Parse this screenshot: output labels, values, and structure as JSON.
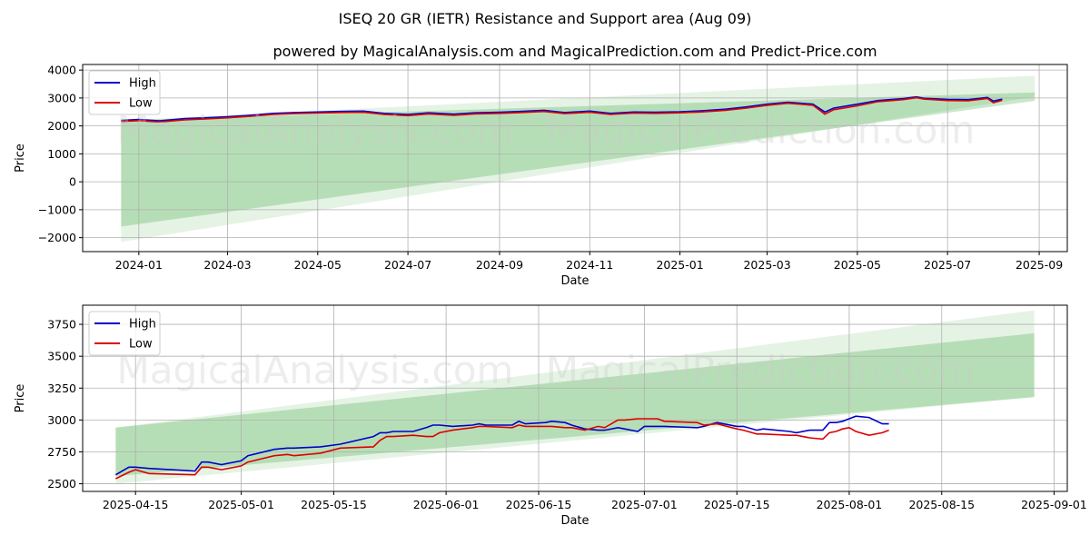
{
  "title": "ISEQ 20 GR (IETR) Resistance and Support area (Aug 09)",
  "subtitle": "powered by MagicalAnalysis.com and MagicalPrediction.com and Predict-Price.com",
  "watermarks": [
    "MagicalAnalysis.com",
    "MagicalPrediction.com"
  ],
  "colors": {
    "high": "#0000cc",
    "low": "#dd0000",
    "band": "#2ca02c",
    "grid": "#b0b0b0"
  },
  "chart_data": [
    {
      "type": "line",
      "xlabel": "Date",
      "ylabel": "Price",
      "grid": true,
      "legend_position": "top-left",
      "xlim": [
        "2023-11-24",
        "2025-09-20"
      ],
      "ylim": [
        -2500,
        4200
      ],
      "x_ticks": [
        "2024-01",
        "2024-03",
        "2024-05",
        "2024-07",
        "2024-09",
        "2024-11",
        "2025-01",
        "2025-03",
        "2025-05",
        "2025-07",
        "2025-09"
      ],
      "x_tick_dates": [
        "2024-01-01",
        "2024-03-01",
        "2024-05-01",
        "2024-07-01",
        "2024-09-01",
        "2024-11-01",
        "2025-01-01",
        "2025-03-01",
        "2025-05-01",
        "2025-07-01",
        "2025-09-01"
      ],
      "y_ticks": [
        -2000,
        -1000,
        0,
        1000,
        2000,
        3000,
        4000
      ],
      "y_tick_labels": [
        "−2000",
        "−1000",
        "0",
        "1000",
        "2000",
        "3000",
        "4000"
      ],
      "bands": [
        {
          "x": [
            "2023-12-20",
            "2025-08-29"
          ],
          "upper": [
            2200,
            3200
          ],
          "lower": [
            -1600,
            2900
          ],
          "opacity": 0.25
        },
        {
          "x": [
            "2023-12-20",
            "2025-08-29"
          ],
          "upper": [
            2200,
            3800
          ],
          "lower": [
            -2150,
            3050
          ],
          "opacity": 0.12
        }
      ],
      "series": [
        {
          "name": "High",
          "x": [
            "2023-12-20",
            "2024-01-01",
            "2024-01-15",
            "2024-02-01",
            "2024-02-15",
            "2024-03-01",
            "2024-03-15",
            "2024-04-01",
            "2024-04-15",
            "2024-05-01",
            "2024-05-15",
            "2024-06-01",
            "2024-06-15",
            "2024-07-01",
            "2024-07-15",
            "2024-08-01",
            "2024-08-15",
            "2024-09-01",
            "2024-09-15",
            "2024-10-01",
            "2024-10-15",
            "2024-11-01",
            "2024-11-15",
            "2024-12-01",
            "2024-12-15",
            "2025-01-01",
            "2025-01-15",
            "2025-02-01",
            "2025-02-15",
            "2025-03-01",
            "2025-03-15",
            "2025-04-01",
            "2025-04-09",
            "2025-04-15",
            "2025-05-01",
            "2025-05-15",
            "2025-06-01",
            "2025-06-10",
            "2025-06-15",
            "2025-07-01",
            "2025-07-15",
            "2025-07-28",
            "2025-08-01",
            "2025-08-07"
          ],
          "values": [
            2200,
            2230,
            2180,
            2260,
            2290,
            2330,
            2380,
            2450,
            2480,
            2500,
            2520,
            2530,
            2450,
            2410,
            2470,
            2420,
            2470,
            2490,
            2520,
            2560,
            2480,
            2530,
            2450,
            2500,
            2490,
            2510,
            2540,
            2600,
            2680,
            2780,
            2850,
            2780,
            2500,
            2640,
            2780,
            2910,
            2980,
            3040,
            2990,
            2950,
            2940,
            3020,
            2890,
            2960
          ]
        },
        {
          "name": "Low",
          "x": [
            "2023-12-20",
            "2024-01-01",
            "2024-01-15",
            "2024-02-01",
            "2024-02-15",
            "2024-03-01",
            "2024-03-15",
            "2024-04-01",
            "2024-04-15",
            "2024-05-01",
            "2024-05-15",
            "2024-06-01",
            "2024-06-15",
            "2024-07-01",
            "2024-07-15",
            "2024-08-01",
            "2024-08-15",
            "2024-09-01",
            "2024-09-15",
            "2024-10-01",
            "2024-10-15",
            "2024-11-01",
            "2024-11-15",
            "2024-12-01",
            "2024-12-15",
            "2025-01-01",
            "2025-01-15",
            "2025-02-01",
            "2025-02-15",
            "2025-03-01",
            "2025-03-15",
            "2025-04-01",
            "2025-04-09",
            "2025-04-15",
            "2025-05-01",
            "2025-05-15",
            "2025-06-01",
            "2025-06-10",
            "2025-06-15",
            "2025-07-01",
            "2025-07-15",
            "2025-07-28",
            "2025-08-01",
            "2025-08-07"
          ],
          "values": [
            2160,
            2190,
            2140,
            2220,
            2250,
            2290,
            2340,
            2410,
            2440,
            2460,
            2480,
            2490,
            2410,
            2370,
            2430,
            2380,
            2430,
            2450,
            2480,
            2520,
            2440,
            2490,
            2410,
            2460,
            2450,
            2470,
            2500,
            2560,
            2640,
            2740,
            2810,
            2740,
            2420,
            2580,
            2720,
            2870,
            2940,
            3010,
            2960,
            2910,
            2900,
            2980,
            2830,
            2920
          ]
        }
      ]
    },
    {
      "type": "line",
      "xlabel": "Date",
      "ylabel": "Price",
      "grid": true,
      "legend_position": "top-left",
      "xlim": [
        "2025-04-07",
        "2025-09-03"
      ],
      "ylim": [
        2440,
        3900
      ],
      "x_ticks": [
        "2025-04-15",
        "2025-05-01",
        "2025-05-15",
        "2025-06-01",
        "2025-06-15",
        "2025-07-01",
        "2025-07-15",
        "2025-08-01",
        "2025-08-15",
        "2025-09-01"
      ],
      "y_ticks": [
        2500,
        2750,
        3000,
        3250,
        3500,
        3750
      ],
      "bands": [
        {
          "x": [
            "2025-04-12",
            "2025-08-29"
          ],
          "upper": [
            2940,
            3680
          ],
          "lower": [
            2560,
            3180
          ],
          "opacity": 0.25
        },
        {
          "x": [
            "2025-04-12",
            "2025-08-29"
          ],
          "upper": [
            2940,
            3860
          ],
          "lower": [
            2500,
            3180
          ],
          "opacity": 0.12
        }
      ],
      "series": [
        {
          "name": "High",
          "x": [
            "2025-04-12",
            "2025-04-14",
            "2025-04-15",
            "2025-04-17",
            "2025-04-24",
            "2025-04-25",
            "2025-04-26",
            "2025-04-28",
            "2025-05-01",
            "2025-05-02",
            "2025-05-06",
            "2025-05-08",
            "2025-05-09",
            "2025-05-13",
            "2025-05-16",
            "2025-05-21",
            "2025-05-22",
            "2025-05-23",
            "2025-05-24",
            "2025-05-27",
            "2025-05-29",
            "2025-05-30",
            "2025-05-31",
            "2025-06-02",
            "2025-06-05",
            "2025-06-06",
            "2025-06-07",
            "2025-06-11",
            "2025-06-12",
            "2025-06-13",
            "2025-06-16",
            "2025-06-17",
            "2025-06-19",
            "2025-06-20",
            "2025-06-22",
            "2025-06-24",
            "2025-06-25",
            "2025-06-27",
            "2025-06-28",
            "2025-06-30",
            "2025-07-01",
            "2025-07-03",
            "2025-07-04",
            "2025-07-09",
            "2025-07-10",
            "2025-07-12",
            "2025-07-15",
            "2025-07-16",
            "2025-07-18",
            "2025-07-19",
            "2025-07-23",
            "2025-07-24",
            "2025-07-26",
            "2025-07-28",
            "2025-07-29",
            "2025-07-30",
            "2025-07-31",
            "2025-08-01",
            "2025-08-02",
            "2025-08-04",
            "2025-08-06",
            "2025-08-07"
          ],
          "values": [
            2570,
            2630,
            2630,
            2620,
            2600,
            2670,
            2670,
            2650,
            2680,
            2720,
            2770,
            2780,
            2780,
            2790,
            2810,
            2870,
            2900,
            2900,
            2910,
            2910,
            2940,
            2960,
            2960,
            2950,
            2960,
            2970,
            2960,
            2960,
            2990,
            2970,
            2980,
            2990,
            2980,
            2960,
            2930,
            2920,
            2920,
            2940,
            2930,
            2910,
            2950,
            2950,
            2950,
            2940,
            2950,
            2980,
            2950,
            2950,
            2920,
            2930,
            2910,
            2900,
            2920,
            2920,
            2980,
            2980,
            2990,
            3010,
            3030,
            3020,
            2970,
            2970
          ]
        },
        {
          "name": "Low",
          "x": [
            "2025-04-12",
            "2025-04-14",
            "2025-04-15",
            "2025-04-17",
            "2025-04-24",
            "2025-04-25",
            "2025-04-26",
            "2025-04-28",
            "2025-05-01",
            "2025-05-02",
            "2025-05-06",
            "2025-05-08",
            "2025-05-09",
            "2025-05-13",
            "2025-05-16",
            "2025-05-21",
            "2025-05-22",
            "2025-05-23",
            "2025-05-24",
            "2025-05-27",
            "2025-05-29",
            "2025-05-30",
            "2025-05-31",
            "2025-06-02",
            "2025-06-05",
            "2025-06-06",
            "2025-06-07",
            "2025-06-11",
            "2025-06-12",
            "2025-06-13",
            "2025-06-16",
            "2025-06-17",
            "2025-06-19",
            "2025-06-20",
            "2025-06-22",
            "2025-06-24",
            "2025-06-25",
            "2025-06-27",
            "2025-06-28",
            "2025-06-30",
            "2025-07-01",
            "2025-07-03",
            "2025-07-04",
            "2025-07-09",
            "2025-07-10",
            "2025-07-12",
            "2025-07-15",
            "2025-07-16",
            "2025-07-18",
            "2025-07-19",
            "2025-07-23",
            "2025-07-24",
            "2025-07-26",
            "2025-07-28",
            "2025-07-29",
            "2025-07-30",
            "2025-07-31",
            "2025-08-01",
            "2025-08-02",
            "2025-08-04",
            "2025-08-06",
            "2025-08-07"
          ],
          "values": [
            2540,
            2590,
            2610,
            2580,
            2570,
            2630,
            2630,
            2610,
            2640,
            2670,
            2720,
            2730,
            2720,
            2740,
            2780,
            2790,
            2840,
            2870,
            2870,
            2880,
            2870,
            2870,
            2900,
            2920,
            2940,
            2950,
            2950,
            2940,
            2960,
            2950,
            2950,
            2950,
            2940,
            2940,
            2920,
            2950,
            2940,
            3000,
            3000,
            3010,
            3010,
            3010,
            2990,
            2980,
            2960,
            2970,
            2930,
            2920,
            2890,
            2890,
            2880,
            2880,
            2860,
            2850,
            2900,
            2910,
            2930,
            2940,
            2910,
            2880,
            2900,
            2920
          ]
        }
      ]
    }
  ]
}
